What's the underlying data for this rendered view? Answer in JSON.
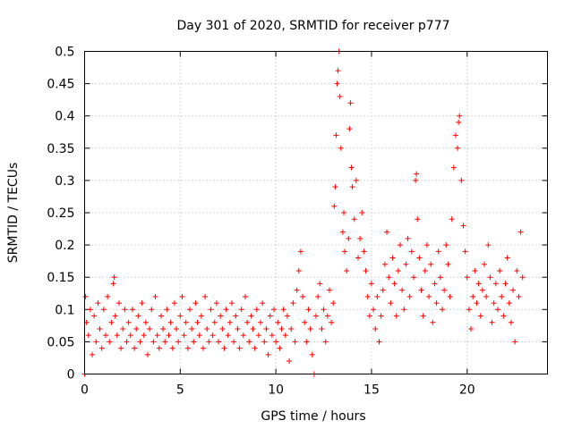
{
  "chart_data": {
    "type": "scatter",
    "title": "Day 301 of 2020, SRMTID for receiver p777",
    "xlabel": "GPS time / hours",
    "ylabel": "SRMTID / TECUs",
    "xlim": [
      0,
      24.2
    ],
    "ylim": [
      0,
      0.5
    ],
    "xticks": [
      0,
      5,
      10,
      15,
      20
    ],
    "xtick_labels": [
      "0",
      "5",
      "10",
      "15",
      "20"
    ],
    "yticks": [
      0,
      0.05,
      0.1,
      0.15,
      0.2,
      0.25,
      0.3,
      0.35,
      0.4,
      0.45,
      0.5
    ],
    "ytick_labels": [
      "0",
      "0.05",
      "0.1",
      "0.15",
      "0.2",
      "0.25",
      "0.3",
      "0.35",
      "0.4",
      "0.45",
      "0.5"
    ],
    "grid": true,
    "marker": "+",
    "series": [
      {
        "name": "SRMTID",
        "color": "#ff0000",
        "points": [
          [
            0.0,
            0.0
          ],
          [
            0.05,
            0.12
          ],
          [
            0.1,
            0.08
          ],
          [
            0.2,
            0.06
          ],
          [
            0.3,
            0.1
          ],
          [
            0.4,
            0.03
          ],
          [
            0.5,
            0.09
          ],
          [
            0.6,
            0.05
          ],
          [
            0.7,
            0.11
          ],
          [
            0.8,
            0.07
          ],
          [
            0.9,
            0.04
          ],
          [
            1.0,
            0.1
          ],
          [
            1.1,
            0.06
          ],
          [
            1.2,
            0.12
          ],
          [
            1.3,
            0.05
          ],
          [
            1.4,
            0.08
          ],
          [
            1.5,
            0.14
          ],
          [
            1.55,
            0.15
          ],
          [
            1.6,
            0.09
          ],
          [
            1.7,
            0.06
          ],
          [
            1.8,
            0.11
          ],
          [
            1.9,
            0.04
          ],
          [
            2.0,
            0.07
          ],
          [
            2.1,
            0.1
          ],
          [
            2.2,
            0.05
          ],
          [
            2.3,
            0.08
          ],
          [
            2.4,
            0.06
          ],
          [
            2.5,
            0.1
          ],
          [
            2.6,
            0.04
          ],
          [
            2.7,
            0.07
          ],
          [
            2.8,
            0.09
          ],
          [
            2.9,
            0.05
          ],
          [
            3.0,
            0.11
          ],
          [
            3.1,
            0.06
          ],
          [
            3.2,
            0.08
          ],
          [
            3.3,
            0.03
          ],
          [
            3.4,
            0.07
          ],
          [
            3.5,
            0.1
          ],
          [
            3.6,
            0.05
          ],
          [
            3.7,
            0.12
          ],
          [
            3.8,
            0.06
          ],
          [
            3.9,
            0.04
          ],
          [
            4.0,
            0.09
          ],
          [
            4.1,
            0.07
          ],
          [
            4.2,
            0.05
          ],
          [
            4.3,
            0.1
          ],
          [
            4.4,
            0.06
          ],
          [
            4.5,
            0.08
          ],
          [
            4.6,
            0.04
          ],
          [
            4.7,
            0.11
          ],
          [
            4.8,
            0.07
          ],
          [
            4.9,
            0.05
          ],
          [
            5.0,
            0.09
          ],
          [
            5.1,
            0.12
          ],
          [
            5.2,
            0.06
          ],
          [
            5.3,
            0.08
          ],
          [
            5.4,
            0.04
          ],
          [
            5.5,
            0.1
          ],
          [
            5.6,
            0.07
          ],
          [
            5.7,
            0.05
          ],
          [
            5.8,
            0.11
          ],
          [
            5.9,
            0.08
          ],
          [
            6.0,
            0.06
          ],
          [
            6.1,
            0.09
          ],
          [
            6.2,
            0.04
          ],
          [
            6.3,
            0.12
          ],
          [
            6.4,
            0.07
          ],
          [
            6.5,
            0.05
          ],
          [
            6.6,
            0.1
          ],
          [
            6.7,
            0.06
          ],
          [
            6.8,
            0.08
          ],
          [
            6.9,
            0.11
          ],
          [
            7.0,
            0.05
          ],
          [
            7.1,
            0.09
          ],
          [
            7.2,
            0.07
          ],
          [
            7.3,
            0.04
          ],
          [
            7.4,
            0.1
          ],
          [
            7.5,
            0.06
          ],
          [
            7.6,
            0.08
          ],
          [
            7.7,
            0.11
          ],
          [
            7.8,
            0.05
          ],
          [
            7.9,
            0.09
          ],
          [
            8.0,
            0.07
          ],
          [
            8.1,
            0.04
          ],
          [
            8.2,
            0.1
          ],
          [
            8.3,
            0.06
          ],
          [
            8.4,
            0.12
          ],
          [
            8.5,
            0.08
          ],
          [
            8.6,
            0.05
          ],
          [
            8.7,
            0.09
          ],
          [
            8.8,
            0.07
          ],
          [
            8.9,
            0.04
          ],
          [
            9.0,
            0.1
          ],
          [
            9.1,
            0.06
          ],
          [
            9.2,
            0.08
          ],
          [
            9.3,
            0.11
          ],
          [
            9.4,
            0.05
          ],
          [
            9.5,
            0.07
          ],
          [
            9.6,
            0.03
          ],
          [
            9.7,
            0.09
          ],
          [
            9.8,
            0.06
          ],
          [
            9.9,
            0.1
          ],
          [
            10.0,
            0.05
          ],
          [
            10.1,
            0.08
          ],
          [
            10.2,
            0.04
          ],
          [
            10.3,
            0.07
          ],
          [
            10.4,
            0.1
          ],
          [
            10.5,
            0.06
          ],
          [
            10.6,
            0.09
          ],
          [
            10.7,
            0.02
          ],
          [
            10.8,
            0.07
          ],
          [
            10.9,
            0.11
          ],
          [
            11.0,
            0.05
          ],
          [
            11.1,
            0.13
          ],
          [
            11.2,
            0.16
          ],
          [
            11.3,
            0.19
          ],
          [
            11.4,
            0.12
          ],
          [
            11.5,
            0.08
          ],
          [
            11.6,
            0.05
          ],
          [
            11.7,
            0.1
          ],
          [
            11.8,
            0.07
          ],
          [
            11.9,
            0.03
          ],
          [
            12.0,
            0.0
          ],
          [
            12.1,
            0.09
          ],
          [
            12.2,
            0.12
          ],
          [
            12.3,
            0.14
          ],
          [
            12.4,
            0.07
          ],
          [
            12.5,
            0.1
          ],
          [
            12.6,
            0.05
          ],
          [
            12.7,
            0.09
          ],
          [
            12.8,
            0.13
          ],
          [
            12.9,
            0.08
          ],
          [
            13.0,
            0.11
          ],
          [
            13.05,
            0.26
          ],
          [
            13.1,
            0.29
          ],
          [
            13.15,
            0.37
          ],
          [
            13.2,
            0.45
          ],
          [
            13.25,
            0.47
          ],
          [
            13.3,
            0.5
          ],
          [
            13.35,
            0.43
          ],
          [
            13.4,
            0.35
          ],
          [
            13.5,
            0.22
          ],
          [
            13.55,
            0.25
          ],
          [
            13.6,
            0.19
          ],
          [
            13.7,
            0.16
          ],
          [
            13.8,
            0.21
          ],
          [
            13.85,
            0.38
          ],
          [
            13.9,
            0.42
          ],
          [
            13.95,
            0.32
          ],
          [
            14.0,
            0.29
          ],
          [
            14.1,
            0.24
          ],
          [
            14.2,
            0.3
          ],
          [
            14.3,
            0.18
          ],
          [
            14.4,
            0.21
          ],
          [
            14.5,
            0.25
          ],
          [
            14.6,
            0.19
          ],
          [
            14.7,
            0.16
          ],
          [
            14.8,
            0.12
          ],
          [
            14.9,
            0.09
          ],
          [
            15.0,
            0.14
          ],
          [
            15.1,
            0.1
          ],
          [
            15.2,
            0.07
          ],
          [
            15.3,
            0.12
          ],
          [
            15.4,
            0.05
          ],
          [
            15.5,
            0.09
          ],
          [
            15.6,
            0.13
          ],
          [
            15.7,
            0.17
          ],
          [
            15.8,
            0.22
          ],
          [
            15.9,
            0.15
          ],
          [
            16.0,
            0.11
          ],
          [
            16.1,
            0.18
          ],
          [
            16.2,
            0.14
          ],
          [
            16.3,
            0.09
          ],
          [
            16.4,
            0.16
          ],
          [
            16.5,
            0.2
          ],
          [
            16.6,
            0.13
          ],
          [
            16.7,
            0.1
          ],
          [
            16.8,
            0.17
          ],
          [
            16.9,
            0.21
          ],
          [
            17.0,
            0.12
          ],
          [
            17.1,
            0.19
          ],
          [
            17.2,
            0.15
          ],
          [
            17.3,
            0.3
          ],
          [
            17.35,
            0.31
          ],
          [
            17.4,
            0.24
          ],
          [
            17.5,
            0.18
          ],
          [
            17.6,
            0.13
          ],
          [
            17.7,
            0.09
          ],
          [
            17.8,
            0.16
          ],
          [
            17.9,
            0.2
          ],
          [
            18.0,
            0.12
          ],
          [
            18.1,
            0.17
          ],
          [
            18.2,
            0.08
          ],
          [
            18.3,
            0.14
          ],
          [
            18.4,
            0.11
          ],
          [
            18.5,
            0.19
          ],
          [
            18.6,
            0.15
          ],
          [
            18.7,
            0.1
          ],
          [
            18.8,
            0.13
          ],
          [
            18.9,
            0.2
          ],
          [
            19.0,
            0.17
          ],
          [
            19.1,
            0.12
          ],
          [
            19.2,
            0.24
          ],
          [
            19.3,
            0.32
          ],
          [
            19.4,
            0.37
          ],
          [
            19.5,
            0.35
          ],
          [
            19.55,
            0.39
          ],
          [
            19.6,
            0.4
          ],
          [
            19.7,
            0.3
          ],
          [
            19.8,
            0.23
          ],
          [
            19.9,
            0.19
          ],
          [
            20.0,
            0.15
          ],
          [
            20.1,
            0.1
          ],
          [
            20.2,
            0.07
          ],
          [
            20.3,
            0.12
          ],
          [
            20.4,
            0.16
          ],
          [
            20.5,
            0.11
          ],
          [
            20.6,
            0.14
          ],
          [
            20.7,
            0.09
          ],
          [
            20.8,
            0.13
          ],
          [
            20.9,
            0.17
          ],
          [
            21.0,
            0.12
          ],
          [
            21.1,
            0.2
          ],
          [
            21.2,
            0.15
          ],
          [
            21.3,
            0.08
          ],
          [
            21.4,
            0.11
          ],
          [
            21.5,
            0.14
          ],
          [
            21.6,
            0.1
          ],
          [
            21.7,
            0.16
          ],
          [
            21.8,
            0.12
          ],
          [
            21.9,
            0.09
          ],
          [
            22.0,
            0.14
          ],
          [
            22.1,
            0.18
          ],
          [
            22.2,
            0.11
          ],
          [
            22.3,
            0.08
          ],
          [
            22.4,
            0.13
          ],
          [
            22.5,
            0.05
          ],
          [
            22.6,
            0.16
          ],
          [
            22.7,
            0.12
          ],
          [
            22.8,
            0.22
          ],
          [
            22.9,
            0.15
          ]
        ]
      }
    ]
  }
}
